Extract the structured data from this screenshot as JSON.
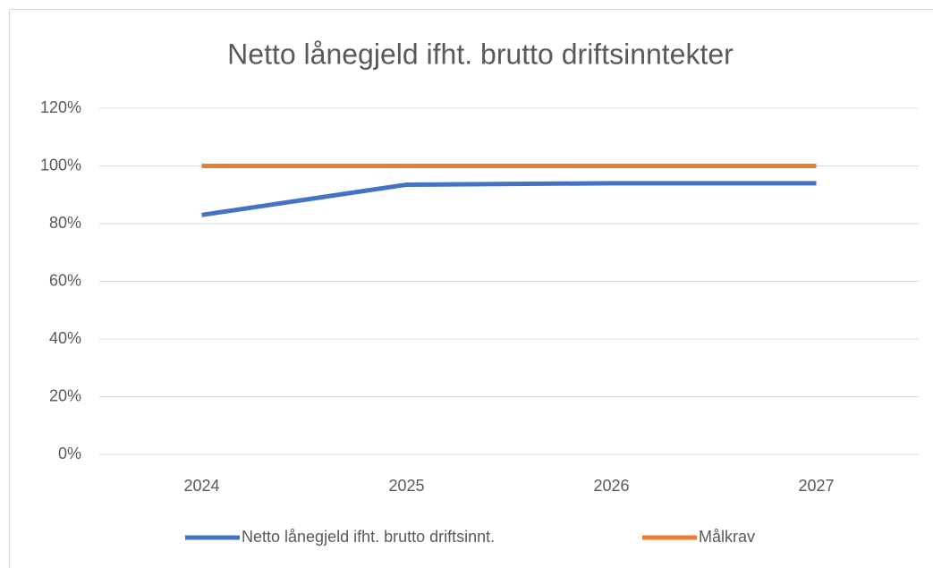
{
  "chart_data": {
    "type": "line",
    "title": "Netto lånegjeld ifht. brutto driftsinntekter",
    "categories": [
      "2024",
      "2025",
      "2026",
      "2027"
    ],
    "series": [
      {
        "name": "Netto lånegjeld ifht. brutto driftsinnt.",
        "color": "#4472c4",
        "values": [
          83,
          93.5,
          94,
          94
        ]
      },
      {
        "name": "Målkrav",
        "color": "#ed7d31",
        "values": [
          100,
          100,
          100,
          100
        ]
      }
    ],
    "ylim": [
      0,
      120
    ],
    "yticks": [
      {
        "value": 0,
        "label": "0%"
      },
      {
        "value": 20,
        "label": "20%"
      },
      {
        "value": 40,
        "label": "40%"
      },
      {
        "value": 60,
        "label": "60%"
      },
      {
        "value": 80,
        "label": "80%"
      },
      {
        "value": 100,
        "label": "100%"
      },
      {
        "value": 120,
        "label": "120%"
      }
    ],
    "grid": true,
    "legend": "bottom"
  }
}
